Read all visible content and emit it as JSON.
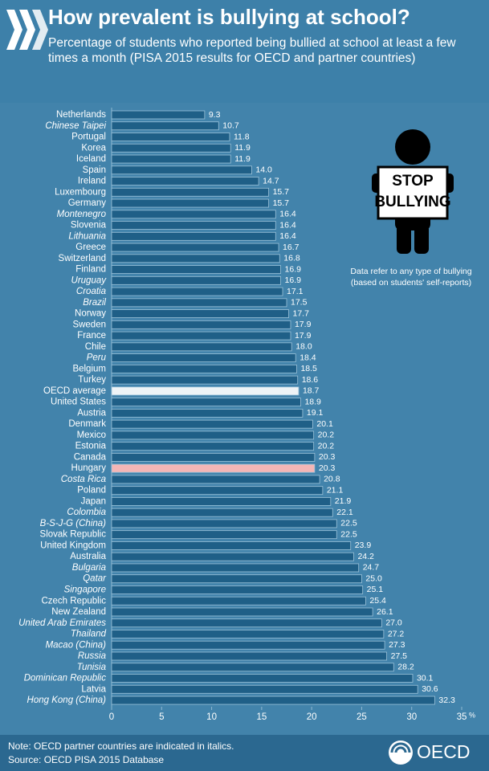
{
  "header": {
    "title": "How prevalent is bullying at school?",
    "subtitle": "Percentage of students who reported being bullied at school at least a few times a month (PISA 2015 results for OECD and partner countries)"
  },
  "chart_data": {
    "type": "bar",
    "orientation": "horizontal",
    "categories": [
      "Netherlands",
      "Chinese Taipei",
      "Portugal",
      "Korea",
      "Iceland",
      "Spain",
      "Ireland",
      "Luxembourg",
      "Germany",
      "Montenegro",
      "Slovenia",
      "Lithuania",
      "Greece",
      "Switzerland",
      "Finland",
      "Uruguay",
      "Croatia",
      "Brazil",
      "Norway",
      "Sweden",
      "France",
      "Chile",
      "Peru",
      "Belgium",
      "Turkey",
      "OECD average",
      "United States",
      "Austria",
      "Denmark",
      "Mexico",
      "Estonia",
      "Canada",
      "Hungary",
      "Costa Rica",
      "Poland",
      "Japan",
      "Colombia",
      "B-S-J-G (China)",
      "Slovak Republic",
      "United Kingdom",
      "Australia",
      "Bulgaria",
      "Qatar",
      "Singapore",
      "Czech Republic",
      "New Zealand",
      "United Arab Emirates",
      "Thailand",
      "Macao (China)",
      "Russia",
      "Tunisia",
      "Dominican Republic",
      "Latvia",
      "Hong Kong (China)"
    ],
    "italic": [
      false,
      true,
      false,
      false,
      false,
      false,
      false,
      false,
      false,
      true,
      false,
      true,
      false,
      false,
      false,
      true,
      true,
      true,
      false,
      false,
      false,
      false,
      true,
      false,
      false,
      false,
      false,
      false,
      false,
      false,
      false,
      false,
      false,
      true,
      false,
      false,
      true,
      true,
      false,
      false,
      false,
      true,
      true,
      true,
      false,
      false,
      true,
      true,
      true,
      true,
      true,
      true,
      false,
      true
    ],
    "values": [
      9.3,
      10.7,
      11.8,
      11.9,
      11.9,
      14.0,
      14.7,
      15.7,
      15.7,
      16.4,
      16.4,
      16.4,
      16.7,
      16.8,
      16.9,
      16.9,
      17.1,
      17.5,
      17.7,
      17.9,
      17.9,
      18.0,
      18.4,
      18.5,
      18.6,
      18.7,
      18.9,
      19.1,
      20.1,
      20.2,
      20.2,
      20.3,
      20.3,
      20.8,
      21.1,
      21.9,
      22.1,
      22.5,
      22.5,
      23.9,
      24.2,
      24.7,
      25.0,
      25.1,
      25.4,
      26.1,
      27.0,
      27.2,
      27.3,
      27.5,
      28.2,
      30.1,
      30.6,
      32.3
    ],
    "value_labels": [
      "9.3",
      "10.7",
      "11.8",
      "11.9",
      "11.9",
      "14.0",
      "14.7",
      "15.7",
      "15.7",
      "16.4",
      "16.4",
      "16.4",
      "16.7",
      "16.8",
      "16.9",
      "16.9",
      "17.1",
      "17.5",
      "17.7",
      "17.9",
      "17.9",
      "18.0",
      "18.4",
      "18.5",
      "18.6",
      "18.7",
      "18.9",
      "19.1",
      "20.1",
      "20.2",
      "20.2",
      "20.3",
      "20.3",
      "20.8",
      "21.1",
      "21.9",
      "22.1",
      "22.5",
      "22.5",
      "23.9",
      "24.2",
      "24.7",
      "25.0",
      "25.1",
      "25.4",
      "26.1",
      "27.0",
      "27.2",
      "27.3",
      "27.5",
      "28.2",
      "30.1",
      "30.6",
      "32.3"
    ],
    "colors": [
      "#1f5f87",
      "#1f5f87",
      "#1f5f87",
      "#1f5f87",
      "#1f5f87",
      "#1f5f87",
      "#1f5f87",
      "#1f5f87",
      "#1f5f87",
      "#1f5f87",
      "#1f5f87",
      "#1f5f87",
      "#1f5f87",
      "#1f5f87",
      "#1f5f87",
      "#1f5f87",
      "#1f5f87",
      "#1f5f87",
      "#1f5f87",
      "#1f5f87",
      "#1f5f87",
      "#1f5f87",
      "#1f5f87",
      "#1f5f87",
      "#1f5f87",
      "#eef3f6",
      "#1f5f87",
      "#1f5f87",
      "#1f5f87",
      "#1f5f87",
      "#1f5f87",
      "#1f5f87",
      "#f4b6b6",
      "#1f5f87",
      "#1f5f87",
      "#1f5f87",
      "#1f5f87",
      "#1f5f87",
      "#1f5f87",
      "#1f5f87",
      "#1f5f87",
      "#1f5f87",
      "#1f5f87",
      "#1f5f87",
      "#1f5f87",
      "#1f5f87",
      "#1f5f87",
      "#1f5f87",
      "#1f5f87",
      "#1f5f87",
      "#1f5f87",
      "#1f5f87",
      "#1f5f87",
      "#1f5f87"
    ],
    "xlim": [
      0,
      35
    ],
    "xticks": [
      0,
      5,
      10,
      15,
      20,
      25,
      30,
      35
    ],
    "x_unit": "%",
    "grid": false,
    "annotation": [
      "Data refer to any type of bullying",
      "(based on students' self-reports)"
    ],
    "sign": [
      "STOP",
      "BULLYING"
    ]
  },
  "footer": {
    "note": "Note: OECD partner countries are indicated in italics.",
    "source": "Source: OECD PISA 2015 Database",
    "logo": "OECD"
  }
}
